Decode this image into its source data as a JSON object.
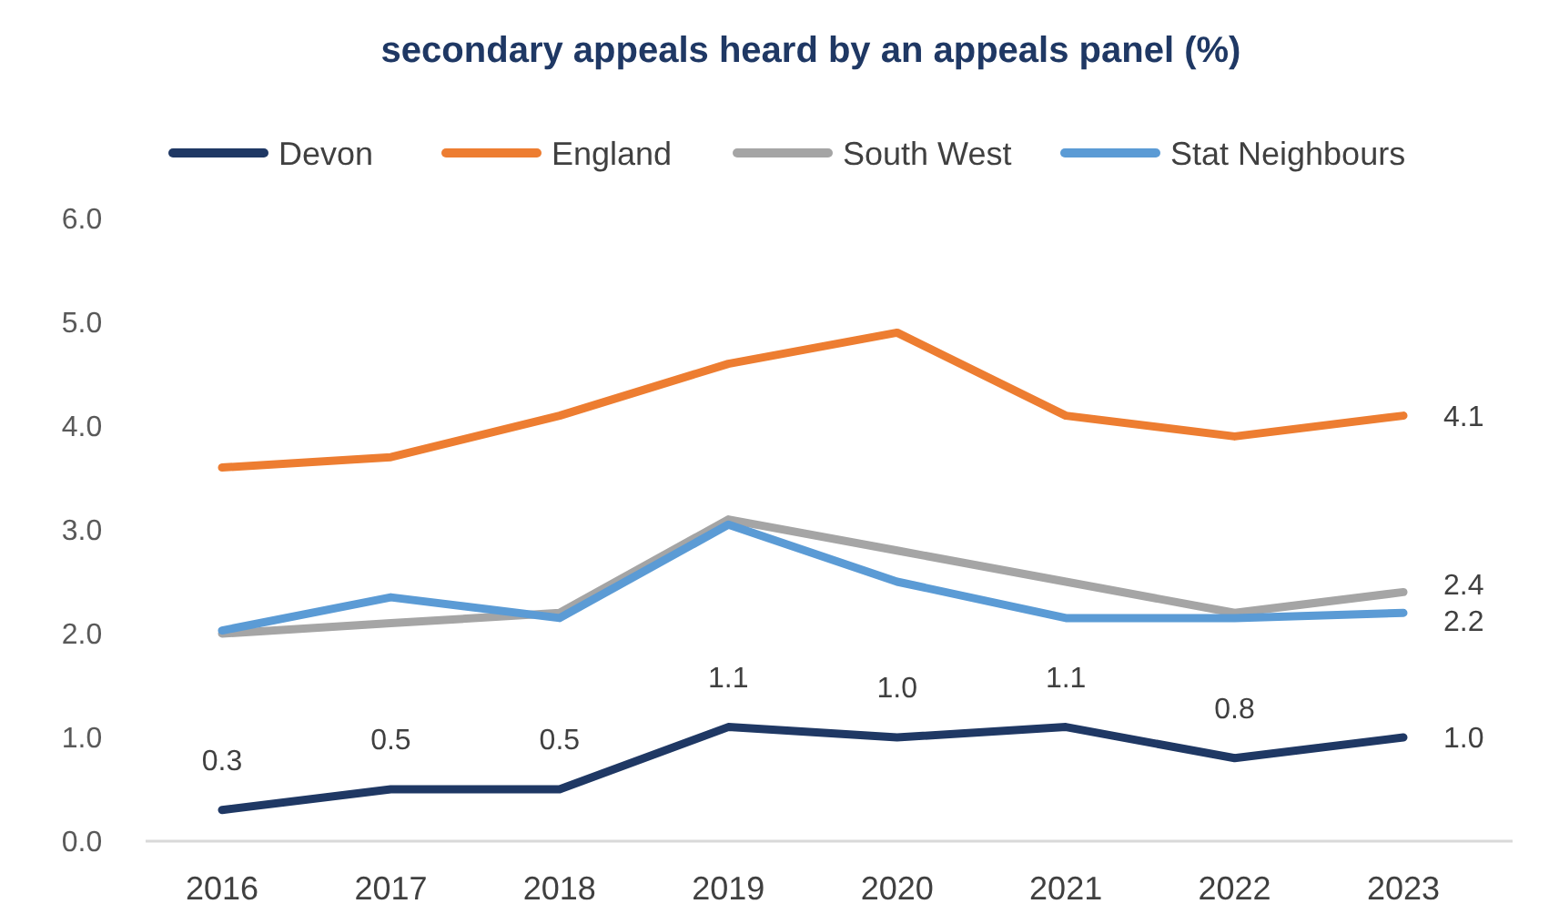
{
  "chart_data": {
    "type": "line",
    "title": "secondary appeals heard by an appeals panel (%)",
    "categories": [
      "2016",
      "2017",
      "2018",
      "2019",
      "2020",
      "2021",
      "2022",
      "2023"
    ],
    "series": [
      {
        "name": "Devon",
        "color": "#1f3864",
        "values": [
          0.3,
          0.5,
          0.5,
          1.1,
          1.0,
          1.1,
          0.8,
          1.0
        ],
        "value_labels": [
          "0.3",
          "0.5",
          "0.5",
          "1.1",
          "1.0",
          "1.1",
          "0.8",
          "1.0"
        ]
      },
      {
        "name": "England",
        "color": "#ed7d31",
        "values": [
          3.6,
          3.7,
          4.1,
          4.6,
          4.9,
          4.1,
          3.9,
          4.1
        ],
        "value_labels": [
          null,
          null,
          null,
          null,
          null,
          null,
          null,
          "4.1"
        ]
      },
      {
        "name": "South West",
        "color": "#a5a5a5",
        "values": [
          2.0,
          2.1,
          2.2,
          3.1,
          2.8,
          2.5,
          2.2,
          2.4
        ],
        "value_labels": [
          null,
          null,
          null,
          null,
          null,
          null,
          null,
          "2.4"
        ]
      },
      {
        "name": "Stat Neighbours",
        "color": "#5b9bd5",
        "values": [
          2.03,
          2.35,
          2.15,
          3.05,
          2.5,
          2.15,
          2.15,
          2.2
        ],
        "value_labels": [
          null,
          null,
          null,
          null,
          null,
          null,
          null,
          "2.2"
        ]
      }
    ],
    "ylim": [
      0,
      6
    ],
    "yticks": [
      {
        "value": 0,
        "label": "0.0"
      },
      {
        "value": 1,
        "label": "1.0"
      },
      {
        "value": 2,
        "label": "2.0"
      },
      {
        "value": 3,
        "label": "3.0"
      },
      {
        "value": 4,
        "label": "4.0"
      },
      {
        "value": 5,
        "label": "5.0"
      },
      {
        "value": 6,
        "label": "6.0"
      }
    ],
    "grid": false,
    "legend": "top",
    "marker": "none",
    "line_style": "solid"
  }
}
